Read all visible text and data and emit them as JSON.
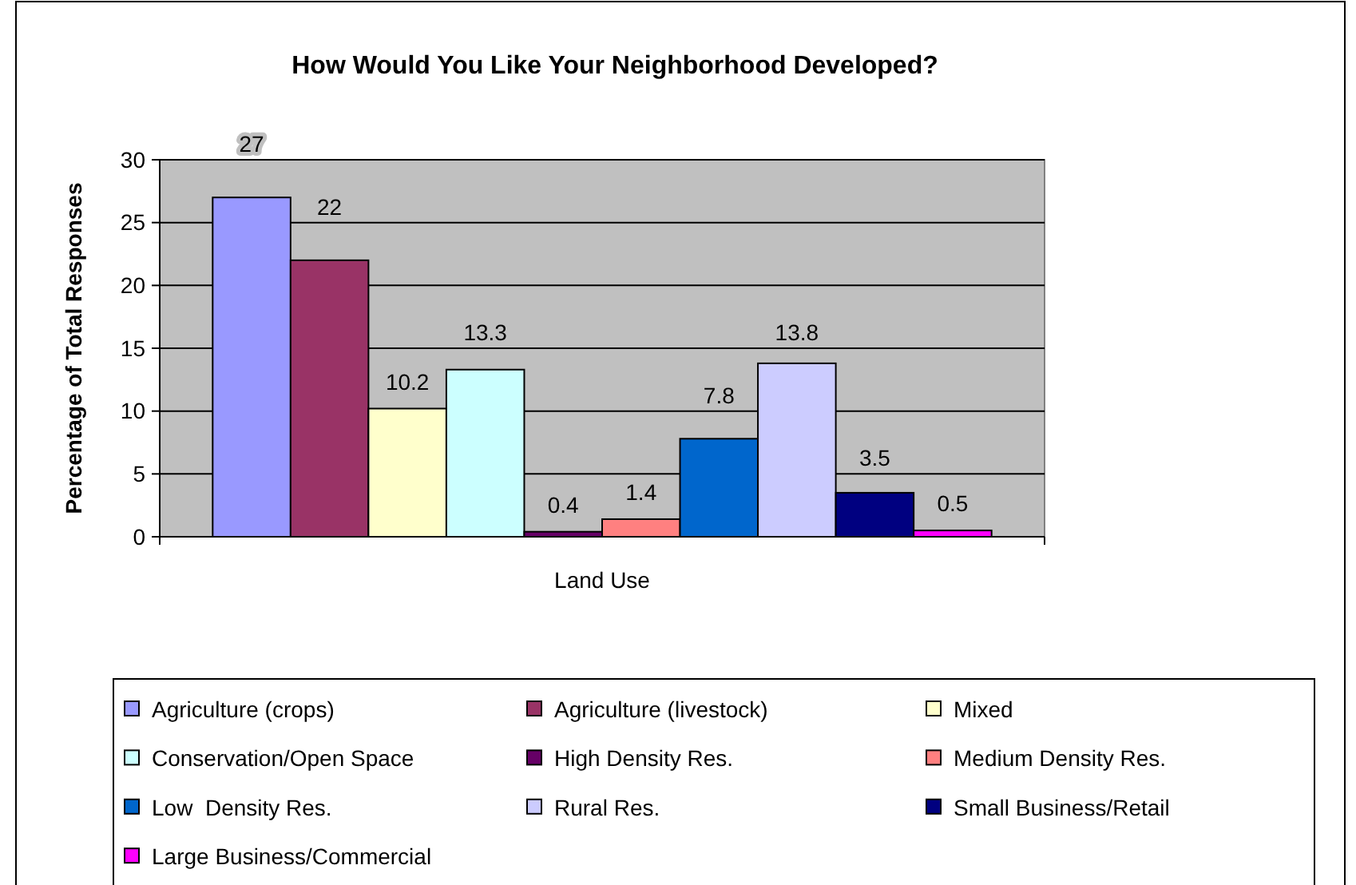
{
  "chart_data": {
    "type": "bar",
    "title": "How Would You Like Your Neighborhood Developed?",
    "xlabel": "Land Use",
    "ylabel": "Percentage of Total Responses",
    "categories": [
      null
    ],
    "series": [
      {
        "name": "Agriculture (crops)",
        "color": "#9999ff",
        "values": [
          27
        ]
      },
      {
        "name": "Agriculture (livestock)",
        "color": "#993366",
        "values": [
          22
        ]
      },
      {
        "name": "Mixed",
        "color": "#ffffcc",
        "values": [
          10.2
        ]
      },
      {
        "name": "Conservation/Open Space",
        "color": "#ccffff",
        "values": [
          13.3
        ]
      },
      {
        "name": "High Density Res.",
        "color": "#660066",
        "values": [
          0.4
        ]
      },
      {
        "name": "Medium Density Res.",
        "color": "#ff8080",
        "values": [
          1.4
        ]
      },
      {
        "name": "Low  Density Res.",
        "color": "#0066cc",
        "values": [
          7.8
        ]
      },
      {
        "name": "Rural Res.",
        "color": "#ccccff",
        "values": [
          13.8
        ]
      },
      {
        "name": "Small Business/Retail",
        "color": "#000080",
        "values": [
          3.5
        ]
      },
      {
        "name": "Large Business/Commercial",
        "color": "#ff00ff",
        "values": [
          0.5
        ]
      }
    ],
    "ylim": [
      0,
      30
    ],
    "yticks": [
      0,
      5,
      10,
      15,
      20,
      25,
      30
    ],
    "grid": "y",
    "legend": "bottom",
    "data_labels": true
  }
}
